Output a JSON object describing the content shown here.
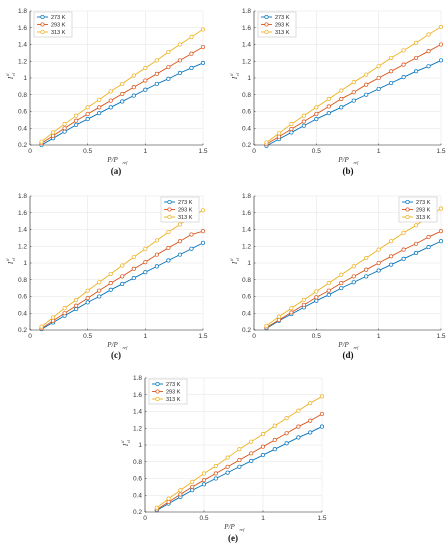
{
  "colors": {
    "blue": "#0072BD",
    "red": "#D95319",
    "yellow": "#EDB120",
    "grid": "#e6e6e6",
    "axis": "#262626"
  },
  "axis_text": {
    "xlabel_main": "P/P",
    "xlabel_sub": "ref",
    "ylabel_main": "I",
    "ylabel_sub": "cl",
    "ylabel_sup": "tl"
  },
  "chart_data": [
    {
      "panel": "(a)",
      "type": "line",
      "x": [
        0.1,
        0.2,
        0.3,
        0.4,
        0.5,
        0.6,
        0.7,
        0.8,
        0.9,
        1.0,
        1.1,
        1.2,
        1.3,
        1.4,
        1.5
      ],
      "xlim": [
        0,
        1.5
      ],
      "ylim": [
        0.2,
        1.8
      ],
      "xticks": [
        "0",
        "0.5",
        "1",
        "1.5"
      ],
      "yticks": [
        "0.2",
        "0.4",
        "0.6",
        "0.8",
        "1",
        "1.2",
        "1.4",
        "1.6",
        "1.8"
      ],
      "grid": true,
      "legend_position": "top-left",
      "marker": "circle",
      "series": [
        {
          "name": "273 K",
          "color": "#0072BD",
          "values": [
            0.2,
            0.28,
            0.36,
            0.44,
            0.51,
            0.58,
            0.65,
            0.72,
            0.79,
            0.86,
            0.93,
            0.99,
            1.06,
            1.12,
            1.18
          ]
        },
        {
          "name": "293 K",
          "color": "#D95319",
          "values": [
            0.22,
            0.31,
            0.4,
            0.49,
            0.57,
            0.65,
            0.73,
            0.81,
            0.89,
            0.97,
            1.05,
            1.13,
            1.21,
            1.29,
            1.37
          ]
        },
        {
          "name": "313 K",
          "color": "#EDB120",
          "values": [
            0.24,
            0.35,
            0.45,
            0.55,
            0.65,
            0.74,
            0.84,
            0.93,
            1.03,
            1.12,
            1.21,
            1.31,
            1.4,
            1.49,
            1.58
          ]
        }
      ]
    },
    {
      "panel": "(b)",
      "type": "line",
      "x": [
        0.1,
        0.2,
        0.3,
        0.4,
        0.5,
        0.6,
        0.7,
        0.8,
        0.9,
        1.0,
        1.1,
        1.2,
        1.3,
        1.4,
        1.5
      ],
      "xlim": [
        0,
        1.5
      ],
      "ylim": [
        0.2,
        1.8
      ],
      "xticks": [
        "0",
        "0.5",
        "1",
        "1.5"
      ],
      "yticks": [
        "0.2",
        "0.4",
        "0.6",
        "0.8",
        "1",
        "1.2",
        "1.4",
        "1.6",
        "1.8"
      ],
      "grid": true,
      "legend_position": "top-left",
      "marker": "circle",
      "series": [
        {
          "name": "273 K",
          "color": "#0072BD",
          "values": [
            0.19,
            0.27,
            0.35,
            0.43,
            0.51,
            0.58,
            0.65,
            0.73,
            0.8,
            0.87,
            0.94,
            1.01,
            1.08,
            1.14,
            1.21
          ]
        },
        {
          "name": "293 K",
          "color": "#D95319",
          "values": [
            0.21,
            0.3,
            0.39,
            0.48,
            0.57,
            0.66,
            0.75,
            0.83,
            0.92,
            1.0,
            1.08,
            1.16,
            1.24,
            1.32,
            1.4
          ]
        },
        {
          "name": "313 K",
          "color": "#EDB120",
          "values": [
            0.23,
            0.34,
            0.45,
            0.55,
            0.65,
            0.75,
            0.85,
            0.95,
            1.04,
            1.14,
            1.24,
            1.33,
            1.42,
            1.52,
            1.61
          ]
        }
      ]
    },
    {
      "panel": "(c)",
      "type": "line",
      "x": [
        0.1,
        0.2,
        0.3,
        0.4,
        0.5,
        0.6,
        0.7,
        0.8,
        0.9,
        1.0,
        1.1,
        1.2,
        1.3,
        1.4,
        1.5
      ],
      "xlim": [
        0,
        1.5
      ],
      "ylim": [
        0.2,
        1.8
      ],
      "xticks": [
        "0",
        "0.5",
        "1",
        "1.5"
      ],
      "yticks": [
        "0.2",
        "0.4",
        "0.6",
        "0.8",
        "1",
        "1.2",
        "1.4",
        "1.6",
        "1.8"
      ],
      "grid": true,
      "legend_position": "top-right",
      "marker": "circle",
      "series": [
        {
          "name": "273 K",
          "color": "#0072BD",
          "values": [
            0.21,
            0.29,
            0.37,
            0.45,
            0.53,
            0.6,
            0.68,
            0.75,
            0.82,
            0.89,
            0.96,
            1.03,
            1.1,
            1.17,
            1.24
          ]
        },
        {
          "name": "293 K",
          "color": "#D95319",
          "values": [
            0.22,
            0.31,
            0.4,
            0.49,
            0.58,
            0.67,
            0.76,
            0.84,
            0.93,
            1.01,
            1.1,
            1.18,
            1.26,
            1.34,
            1.38
          ]
        },
        {
          "name": "313 K",
          "color": "#EDB120",
          "values": [
            0.24,
            0.35,
            0.46,
            0.56,
            0.67,
            0.77,
            0.87,
            0.97,
            1.07,
            1.17,
            1.27,
            1.37,
            1.46,
            1.56,
            1.63
          ]
        }
      ]
    },
    {
      "panel": "(d)",
      "type": "line",
      "x": [
        0.1,
        0.2,
        0.3,
        0.4,
        0.5,
        0.6,
        0.7,
        0.8,
        0.9,
        1.0,
        1.1,
        1.2,
        1.3,
        1.4,
        1.5
      ],
      "xlim": [
        0,
        1.5
      ],
      "ylim": [
        0.2,
        1.8
      ],
      "xticks": [
        "0",
        "0.5",
        "1",
        "1.5"
      ],
      "yticks": [
        "0.2",
        "0.4",
        "0.6",
        "0.8",
        "1",
        "1.2",
        "1.4",
        "1.6",
        "1.8"
      ],
      "grid": true,
      "legend_position": "top-right",
      "marker": "circle",
      "series": [
        {
          "name": "273 K",
          "color": "#0072BD",
          "values": [
            0.22,
            0.31,
            0.39,
            0.47,
            0.55,
            0.62,
            0.7,
            0.77,
            0.84,
            0.91,
            0.98,
            1.05,
            1.12,
            1.19,
            1.26
          ]
        },
        {
          "name": "293 K",
          "color": "#D95319",
          "values": [
            0.23,
            0.32,
            0.41,
            0.5,
            0.59,
            0.67,
            0.76,
            0.84,
            0.92,
            1.0,
            1.08,
            1.16,
            1.23,
            1.31,
            1.38
          ]
        },
        {
          "name": "313 K",
          "color": "#EDB120",
          "values": [
            0.25,
            0.36,
            0.46,
            0.56,
            0.66,
            0.76,
            0.86,
            0.96,
            1.06,
            1.16,
            1.26,
            1.36,
            1.45,
            1.55,
            1.65
          ]
        }
      ]
    },
    {
      "panel": "(e)",
      "type": "line",
      "x": [
        0.1,
        0.2,
        0.3,
        0.4,
        0.5,
        0.6,
        0.7,
        0.8,
        0.9,
        1.0,
        1.1,
        1.2,
        1.3,
        1.4,
        1.5
      ],
      "xlim": [
        0,
        1.5
      ],
      "ylim": [
        0.2,
        1.8
      ],
      "xticks": [
        "0",
        "0.5",
        "1",
        "1.5"
      ],
      "yticks": [
        "0.2",
        "0.4",
        "0.6",
        "0.8",
        "1",
        "1.2",
        "1.4",
        "1.6",
        "1.8"
      ],
      "grid": true,
      "legend_position": "top-left",
      "marker": "circle",
      "series": [
        {
          "name": "273 K",
          "color": "#0072BD",
          "values": [
            0.22,
            0.3,
            0.38,
            0.46,
            0.53,
            0.6,
            0.67,
            0.74,
            0.81,
            0.88,
            0.95,
            1.02,
            1.09,
            1.15,
            1.22
          ]
        },
        {
          "name": "293 K",
          "color": "#D95319",
          "values": [
            0.23,
            0.32,
            0.41,
            0.5,
            0.58,
            0.66,
            0.74,
            0.82,
            0.9,
            0.98,
            1.06,
            1.14,
            1.22,
            1.29,
            1.37
          ]
        },
        {
          "name": "313 K",
          "color": "#EDB120",
          "values": [
            0.25,
            0.36,
            0.46,
            0.56,
            0.66,
            0.75,
            0.85,
            0.95,
            1.04,
            1.13,
            1.23,
            1.32,
            1.41,
            1.5,
            1.58
          ]
        }
      ]
    }
  ]
}
